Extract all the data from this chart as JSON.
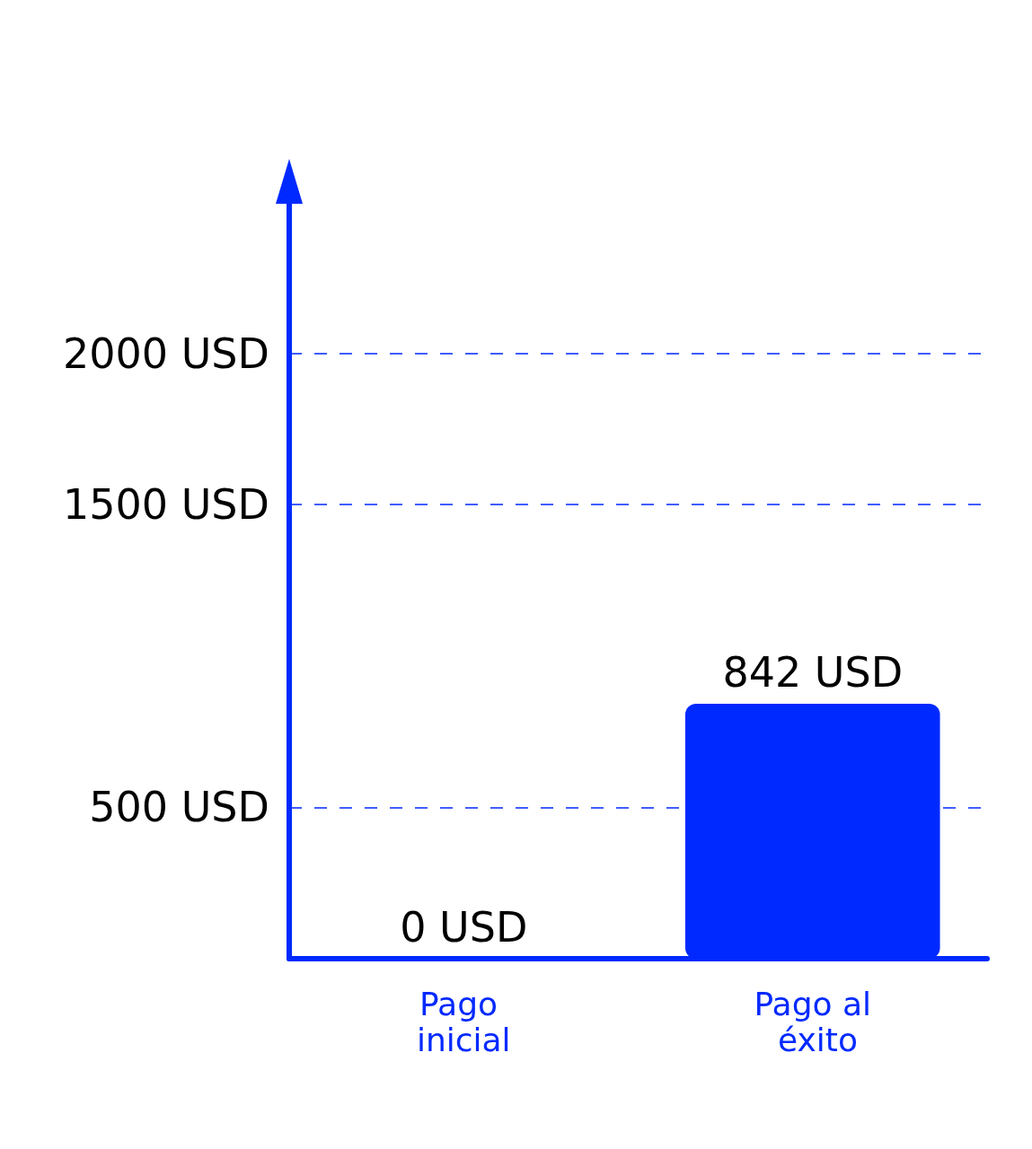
{
  "chart_data": {
    "type": "bar",
    "categories": [
      "Pago inicial",
      "Pago al éxito"
    ],
    "series": [
      {
        "color": "#0029ff",
        "values": [
          0,
          842
        ],
        "value_labels": [
          "0 USD",
          "842 USD"
        ]
      }
    ],
    "ylim": [
      0,
      2500
    ],
    "yticks": [
      {
        "value": 500,
        "label": "500 USD"
      },
      {
        "value": 1500,
        "label": "1500 USD"
      },
      {
        "value": 2000,
        "label": "2000 USD"
      }
    ],
    "grid": "y"
  }
}
